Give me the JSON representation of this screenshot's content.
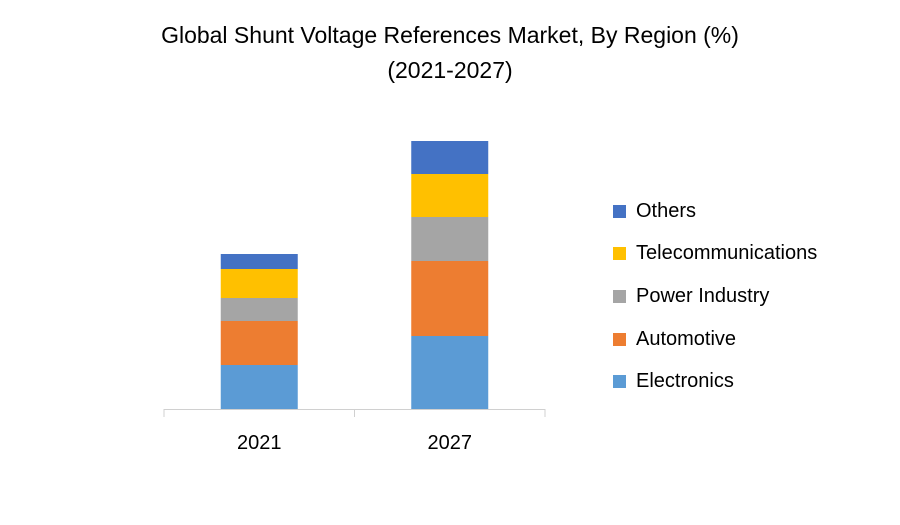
{
  "chart_data": {
    "type": "bar",
    "stacked": true,
    "title": "Global Shunt Voltage References Market, By Region (%)",
    "subtitle": "(2021-2027)",
    "categories": [
      "2021",
      "2027"
    ],
    "series": [
      {
        "name": "Electronics",
        "color": "#5B9BD5",
        "values": [
          44,
          73
        ]
      },
      {
        "name": "Automotive",
        "color": "#ED7D31",
        "values": [
          44,
          75
        ]
      },
      {
        "name": "Power Industry",
        "color": "#A5A5A5",
        "values": [
          23,
          44
        ]
      },
      {
        "name": "Telecommunications",
        "color": "#FFC000",
        "values": [
          29,
          43
        ]
      },
      {
        "name": "Others",
        "color": "#4472C4",
        "values": [
          15,
          33
        ]
      }
    ],
    "value_axis_visible": false,
    "grid": false,
    "legend_placement": "right",
    "ylim": [
      0,
      280
    ]
  }
}
